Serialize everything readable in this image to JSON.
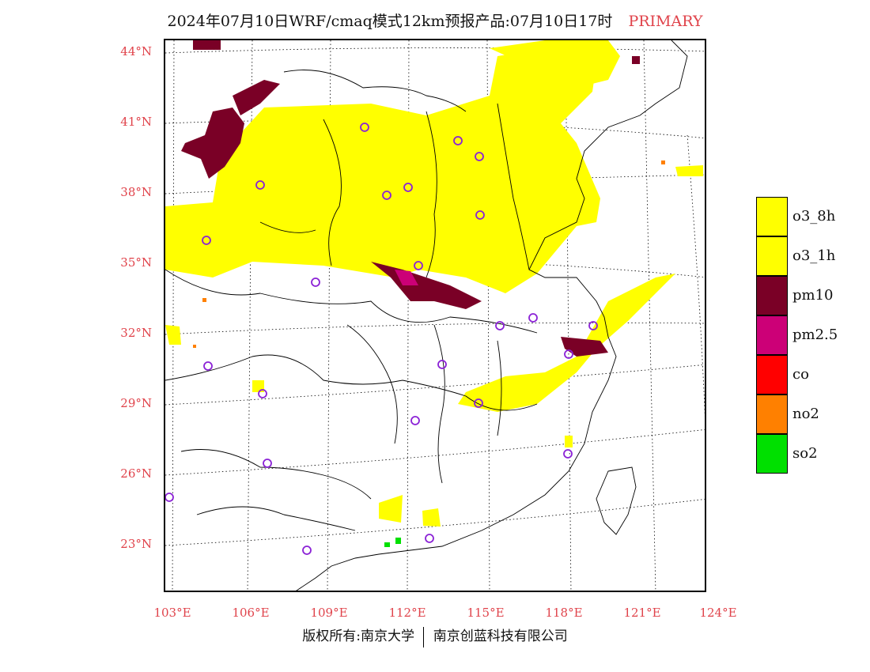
{
  "header": {
    "title": "2024年07月10日WRF/cmaq模式12km预报产品:07月10日17时",
    "tag": "PRIMARY"
  },
  "axes": {
    "lat_labels": [
      "44°N",
      "41°N",
      "38°N",
      "35°N",
      "32°N",
      "29°N",
      "26°N",
      "23°N"
    ],
    "lon_labels": [
      "103°E",
      "106°E",
      "109°E",
      "112°E",
      "115°E",
      "118°E",
      "121°E",
      "124°E"
    ]
  },
  "legend": {
    "items": [
      {
        "label": "o3_8h",
        "color": "#ffff00"
      },
      {
        "label": "o3_1h",
        "color": "#ffff00"
      },
      {
        "label": "pm10",
        "color": "#7a0026"
      },
      {
        "label": "pm2.5",
        "color": "#cc0077"
      },
      {
        "label": "co",
        "color": "#ff0000"
      },
      {
        "label": "no2",
        "color": "#ff8000"
      },
      {
        "label": "so2",
        "color": "#00e000"
      }
    ]
  },
  "footer": {
    "left": "版权所有:南京大学",
    "right": "南京创蓝科技有限公司"
  }
}
